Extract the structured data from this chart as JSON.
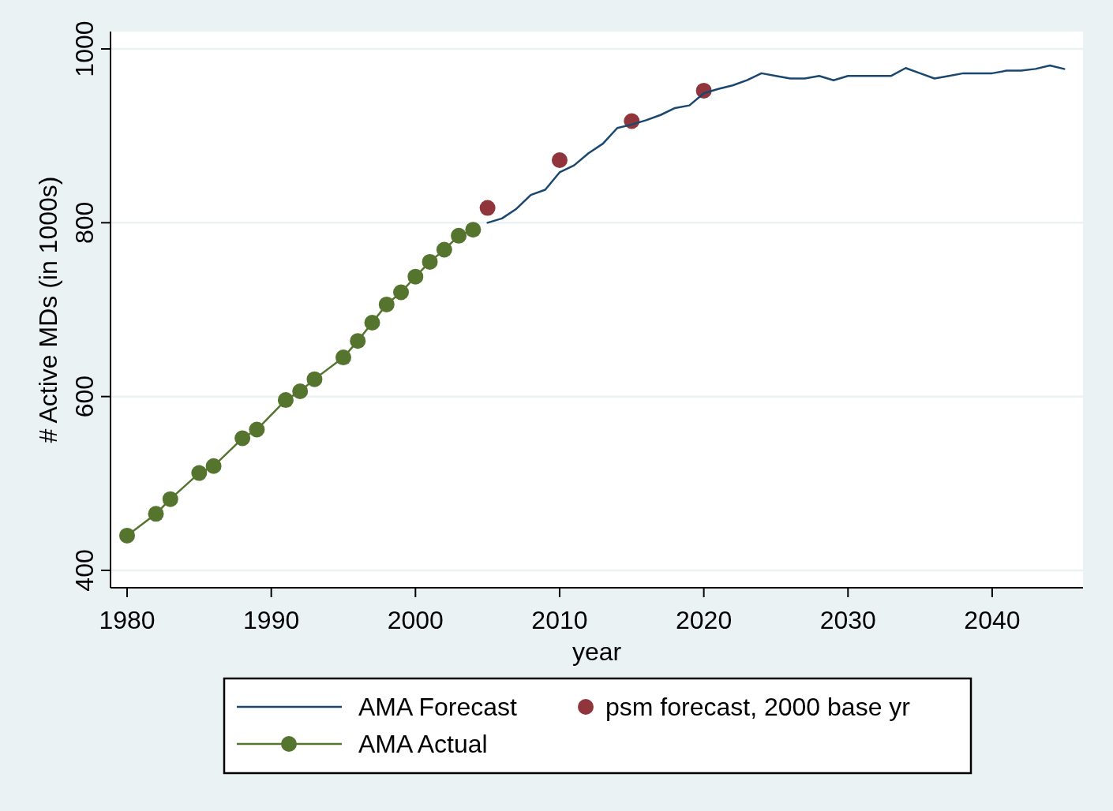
{
  "chart_data": {
    "type": "line",
    "xlabel": "year",
    "ylabel": "# Active MDs (in 1000s)",
    "xlim": [
      1978.85,
      2046.3
    ],
    "xticks": [
      1980,
      1990,
      2000,
      2010,
      2020,
      2030,
      2040
    ],
    "ylim": [
      380,
      1020
    ],
    "yticks": [
      400,
      600,
      800,
      1000
    ],
    "grid": "y",
    "legend": "bottom",
    "series": [
      {
        "name": "AMA Forecast",
        "marker": "none",
        "color": "#1a476f",
        "x": [
          2005,
          2006,
          2007,
          2008,
          2009,
          2010,
          2011,
          2012,
          2013,
          2014,
          2015,
          2016,
          2017,
          2018,
          2019,
          2020,
          2021,
          2022,
          2023,
          2024,
          2025,
          2026,
          2027,
          2028,
          2029,
          2030,
          2031,
          2032,
          2033,
          2034,
          2035,
          2036,
          2037,
          2038,
          2039,
          2040,
          2041,
          2042,
          2043,
          2044,
          2045
        ],
        "values": [
          800,
          805,
          816,
          832,
          838,
          858,
          866,
          880,
          891,
          909,
          913,
          918,
          924,
          932,
          935,
          949,
          954,
          958,
          964,
          972,
          969,
          966,
          966,
          969,
          964,
          969,
          969,
          969,
          969,
          978,
          972,
          966,
          969,
          972,
          972,
          972,
          975,
          975,
          977,
          981,
          977
        ]
      },
      {
        "name": "psm forecast, 2000 base yr",
        "type": "scatter",
        "marker": "circle",
        "color": "#90353b",
        "x": [
          2005,
          2010,
          2015,
          2020
        ],
        "values": [
          817,
          872,
          917,
          952
        ]
      },
      {
        "name": "AMA Actual",
        "marker": "circle",
        "color": "#55752f",
        "x": [
          1980,
          1982,
          1983,
          1985,
          1986,
          1988,
          1989,
          1991,
          1992,
          1993,
          1995,
          1996,
          1997,
          1998,
          1999,
          2000,
          2001,
          2002,
          2003,
          2004
        ],
        "values": [
          440,
          465,
          482,
          512,
          520,
          552,
          562,
          596,
          606,
          620,
          645,
          664,
          685,
          706,
          720,
          738,
          755,
          769,
          785,
          792
        ]
      }
    ]
  }
}
